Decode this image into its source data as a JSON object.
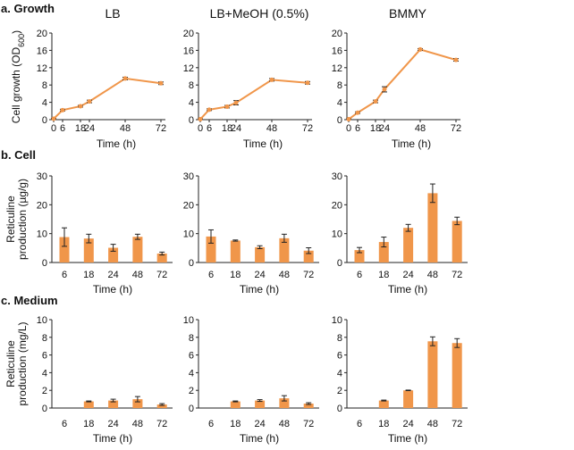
{
  "accent_color": "#F0964A",
  "conditions": [
    "LB",
    "LB+MeOH  (0.5%)",
    "BMMY"
  ],
  "rows": [
    {
      "label": "a. Growth",
      "ylabel": "Cell growth (OD",
      "ylabel_sub": "600",
      "ylabel_end": ")"
    },
    {
      "label": "b. Cell",
      "ylabel": [
        "Reticuline",
        "production (µg/g)"
      ]
    },
    {
      "label": "c. Medium",
      "ylabel": [
        "Reticuline",
        "production (mg/L)"
      ]
    }
  ],
  "chart_data": [
    {
      "type": "line",
      "row": "a",
      "title": "LB",
      "xlabel": "Time (h)",
      "x": [
        0,
        6,
        18,
        24,
        48,
        72
      ],
      "xticks": [
        "0",
        "6",
        "18",
        "24",
        "48",
        "72"
      ],
      "ylim": [
        0,
        20
      ],
      "yticks": [
        0,
        4,
        8,
        12,
        16,
        20
      ],
      "values": [
        0.2,
        2.2,
        3.1,
        4.2,
        9.5,
        8.4
      ],
      "errors": [
        0.1,
        0.2,
        0.2,
        0.3,
        0.3,
        0.3
      ]
    },
    {
      "type": "line",
      "row": "a",
      "title": "LB+MeOH  (0.5%)",
      "xlabel": "Time (h)",
      "x": [
        0,
        6,
        18,
        24,
        48,
        72
      ],
      "xticks": [
        "0",
        "6",
        "18",
        "24",
        "48",
        "72"
      ],
      "ylim": [
        0,
        20
      ],
      "yticks": [
        0,
        4,
        8,
        12,
        16,
        20
      ],
      "values": [
        0.1,
        2.3,
        3.0,
        3.9,
        9.2,
        8.5
      ],
      "errors": [
        0.1,
        0.2,
        0.3,
        0.5,
        0.3,
        0.3
      ]
    },
    {
      "type": "line",
      "row": "a",
      "title": "BMMY",
      "xlabel": "Time (h)",
      "x": [
        0,
        6,
        18,
        24,
        48,
        72
      ],
      "xticks": [
        "0",
        "6",
        "18",
        "24",
        "48",
        "72"
      ],
      "ylim": [
        0,
        20
      ],
      "yticks": [
        0,
        4,
        8,
        12,
        16,
        20
      ],
      "values": [
        0.1,
        1.6,
        4.2,
        7.0,
        16.2,
        13.8
      ],
      "errors": [
        0.1,
        0.2,
        0.3,
        0.6,
        0.2,
        0.3
      ]
    },
    {
      "type": "bar",
      "row": "b",
      "title": "LB",
      "xlabel": "Time (h)",
      "categories": [
        "6",
        "18",
        "24",
        "48",
        "72"
      ],
      "ylim": [
        0,
        30
      ],
      "yticks": [
        0,
        10,
        20,
        30
      ],
      "values": [
        8.8,
        8.3,
        5.1,
        8.9,
        3.1
      ],
      "errors": [
        3.2,
        1.5,
        1.2,
        0.9,
        0.5
      ]
    },
    {
      "type": "bar",
      "row": "b",
      "title": "LB+MeOH  (0.5%)",
      "xlabel": "Time (h)",
      "categories": [
        "6",
        "18",
        "24",
        "48",
        "72"
      ],
      "ylim": [
        0,
        30
      ],
      "yticks": [
        0,
        10,
        20,
        30
      ],
      "values": [
        9.0,
        7.6,
        5.3,
        8.4,
        4.1
      ],
      "errors": [
        2.3,
        0.2,
        0.5,
        1.4,
        1.0
      ]
    },
    {
      "type": "bar",
      "row": "b",
      "title": "BMMY",
      "xlabel": "Time (h)",
      "categories": [
        "6",
        "18",
        "24",
        "48",
        "72"
      ],
      "ylim": [
        0,
        30
      ],
      "yticks": [
        0,
        10,
        20,
        30
      ],
      "values": [
        4.3,
        7.1,
        12.0,
        24.0,
        14.4
      ],
      "errors": [
        0.9,
        1.7,
        1.2,
        3.2,
        1.3
      ]
    },
    {
      "type": "bar",
      "row": "c",
      "title": "LB",
      "xlabel": "Time (h)",
      "categories": [
        "6",
        "18",
        "24",
        "48",
        "72"
      ],
      "ylim": [
        0,
        10
      ],
      "yticks": [
        0,
        2,
        4,
        6,
        8,
        10
      ],
      "values": [
        0,
        0.75,
        0.85,
        1.0,
        0.4
      ],
      "errors": [
        0,
        0.05,
        0.15,
        0.3,
        0.1
      ]
    },
    {
      "type": "bar",
      "row": "c",
      "title": "LB+MeOH  (0.5%)",
      "xlabel": "Time (h)",
      "categories": [
        "6",
        "18",
        "24",
        "48",
        "72"
      ],
      "ylim": [
        0,
        10
      ],
      "yticks": [
        0,
        2,
        4,
        6,
        8,
        10
      ],
      "values": [
        0,
        0.75,
        0.85,
        1.1,
        0.5
      ],
      "errors": [
        0,
        0.05,
        0.1,
        0.3,
        0.1
      ]
    },
    {
      "type": "bar",
      "row": "c",
      "title": "BMMY",
      "xlabel": "Time (h)",
      "categories": [
        "6",
        "18",
        "24",
        "48",
        "72"
      ],
      "ylim": [
        0,
        10
      ],
      "yticks": [
        0,
        2,
        4,
        6,
        8,
        10
      ],
      "values": [
        0,
        0.85,
        2.0,
        7.55,
        7.35
      ],
      "errors": [
        0,
        0.05,
        0.03,
        0.5,
        0.5
      ]
    }
  ]
}
